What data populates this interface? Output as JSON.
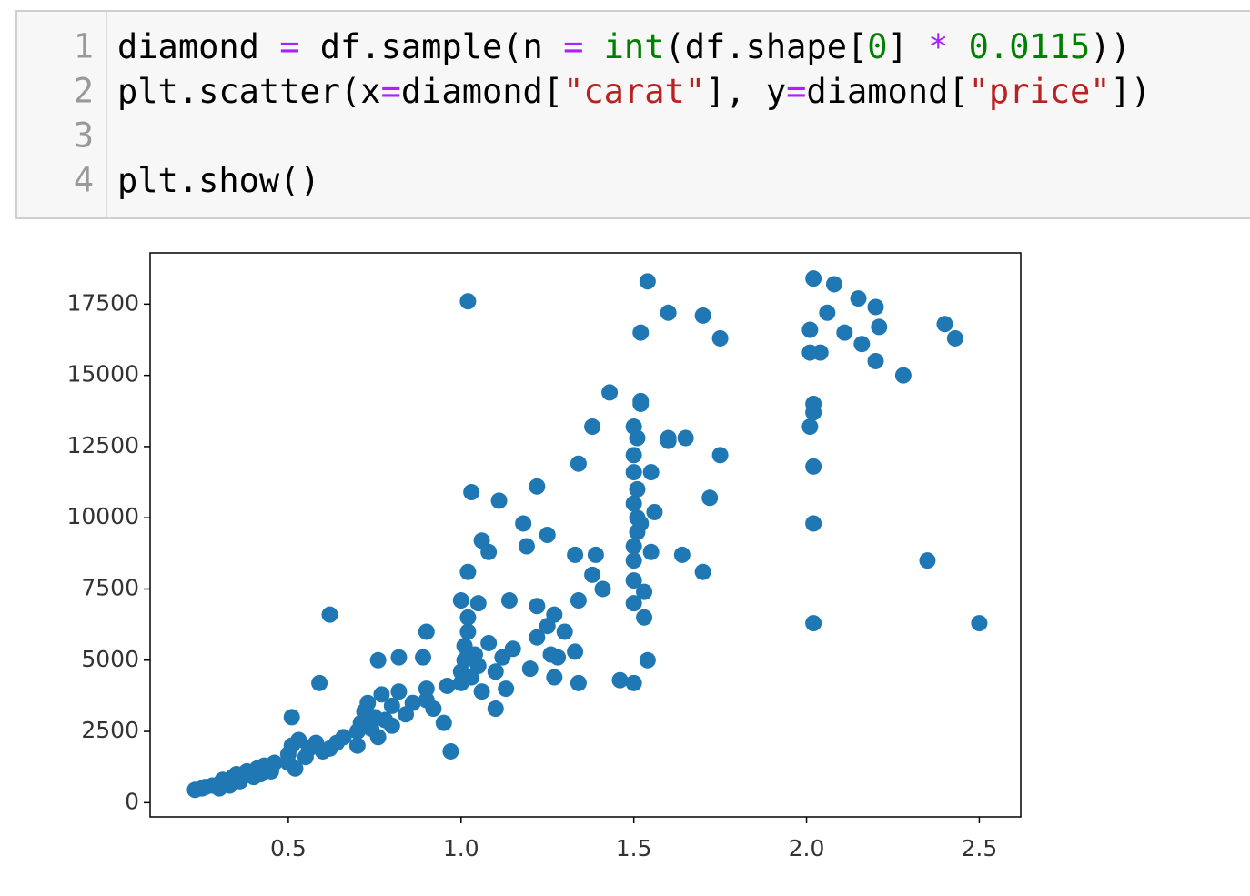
{
  "code": {
    "lines": [
      {
        "number": "1",
        "tokens": [
          {
            "text": "diamond ",
            "color": "#000000"
          },
          {
            "text": "=",
            "color": "#aa22ff"
          },
          {
            "text": " df.sample(n ",
            "color": "#000000"
          },
          {
            "text": "=",
            "color": "#aa22ff"
          },
          {
            "text": " ",
            "color": "#000000"
          },
          {
            "text": "int",
            "color": "#008000"
          },
          {
            "text": "(df.shape[",
            "color": "#000000"
          },
          {
            "text": "0",
            "color": "#008000"
          },
          {
            "text": "] ",
            "color": "#000000"
          },
          {
            "text": "*",
            "color": "#aa22ff"
          },
          {
            "text": " ",
            "color": "#000000"
          },
          {
            "text": "0.0115",
            "color": "#008000"
          },
          {
            "text": "))",
            "color": "#000000"
          }
        ]
      },
      {
        "number": "2",
        "tokens": [
          {
            "text": "plt.scatter(x",
            "color": "#000000"
          },
          {
            "text": "=",
            "color": "#aa22ff"
          },
          {
            "text": "diamond[",
            "color": "#000000"
          },
          {
            "text": "\"carat\"",
            "color": "#ba2121"
          },
          {
            "text": "], y",
            "color": "#000000"
          },
          {
            "text": "=",
            "color": "#aa22ff"
          },
          {
            "text": "diamond[",
            "color": "#000000"
          },
          {
            "text": "\"price\"",
            "color": "#ba2121"
          },
          {
            "text": "])",
            "color": "#000000"
          }
        ]
      },
      {
        "number": "3",
        "tokens": []
      },
      {
        "number": "4",
        "tokens": [
          {
            "text": "plt.show()",
            "color": "#000000"
          }
        ]
      }
    ]
  },
  "chart_data": {
    "type": "scatter",
    "color": "#1f77b4",
    "xlim": [
      0.1,
      2.62
    ],
    "ylim": [
      -500,
      19300
    ],
    "xticks": [
      0.5,
      {
        "value": 1,
        "label": "1.0"
      },
      1.5,
      {
        "value": 2,
        "label": "2.0"
      },
      2.5
    ],
    "yticks": [
      0,
      2500,
      5000,
      7500,
      10000,
      12500,
      15000,
      17500
    ],
    "x": [
      1.02,
      1.54,
      1.6,
      1.7,
      1.75,
      1.52,
      2.02,
      2.08,
      2.06,
      2.15,
      2.2,
      2.21,
      2.11,
      2.16,
      2.2,
      2.28,
      2.4,
      2.43,
      2.01,
      2.01,
      2.04,
      2.02,
      2.02,
      2.01,
      2.02,
      2.02,
      2.35,
      2.02,
      2.5,
      1.7,
      1.64,
      1.72,
      1.75,
      1.6,
      1.55,
      1.52,
      1.43,
      1.38,
      1.34,
      1.22,
      1.11,
      1.03,
      1.18,
      1.25,
      1.19,
      1.33,
      1.39,
      1.38,
      1.41,
      1.34,
      1.27,
      1.22,
      1.14,
      1.06,
      1.08,
      1.02,
      1.0,
      0.9,
      0.82,
      0.89,
      0.76,
      0.62,
      0.59,
      0.51,
      0.97,
      1.1,
      1.54,
      1.53,
      1.5,
      1.46,
      1.34,
      1.27,
      1.33,
      1.26,
      0.23,
      0.25,
      0.26,
      0.28,
      0.3,
      0.3,
      0.31,
      0.32,
      0.33,
      0.34,
      0.35,
      0.36,
      0.38,
      0.4,
      0.41,
      0.42,
      0.43,
      0.45,
      0.46,
      0.5,
      0.5,
      0.51,
      0.52,
      0.53,
      0.55,
      0.56,
      0.58,
      0.6,
      0.62,
      0.64,
      0.66,
      0.7,
      0.7,
      0.71,
      0.72,
      0.73,
      0.74,
      0.75,
      0.76,
      0.77,
      0.78,
      0.8,
      0.8,
      0.82,
      0.84,
      0.86,
      0.9,
      0.9,
      0.92,
      0.95,
      0.96,
      1.0,
      1.0,
      1.01,
      1.01,
      1.02,
      1.02,
      1.03,
      1.04,
      1.05,
      1.05,
      1.06,
      1.08,
      1.1,
      1.12,
      1.13,
      1.15,
      1.2,
      1.22,
      1.25,
      1.28,
      1.3,
      1.5,
      1.5,
      1.5,
      1.5,
      1.51,
      1.51,
      1.5,
      1.51,
      1.5,
      1.5,
      1.51,
      1.5,
      1.52,
      1.53,
      1.55,
      1.56,
      1.52,
      1.6,
      1.65
    ],
    "values": [
      17600,
      18300,
      17200,
      17100,
      16300,
      16500,
      18400,
      18200,
      17200,
      17700,
      17400,
      16700,
      16500,
      16100,
      15500,
      15000,
      16800,
      16300,
      16600,
      15800,
      15800,
      14000,
      13700,
      13200,
      11800,
      9800,
      8500,
      6300,
      6300,
      8100,
      8700,
      10700,
      12200,
      12800,
      11600,
      14100,
      14400,
      13200,
      11900,
      11100,
      10600,
      10900,
      9800,
      9400,
      9000,
      8700,
      8700,
      8000,
      7500,
      7100,
      6600,
      6900,
      7100,
      9200,
      8800,
      8100,
      7100,
      6000,
      5100,
      5100,
      5000,
      6600,
      4200,
      3000,
      1800,
      3300,
      5000,
      6500,
      4200,
      4300,
      4200,
      4400,
      5300,
      5200,
      450,
      500,
      550,
      600,
      650,
      500,
      800,
      700,
      600,
      900,
      1000,
      750,
      1100,
      900,
      1200,
      1000,
      1300,
      1100,
      1400,
      1400,
      1700,
      2000,
      1200,
      2200,
      1600,
      1900,
      2100,
      1800,
      1900,
      2100,
      2300,
      2500,
      2000,
      2800,
      3200,
      3500,
      2600,
      3000,
      2300,
      3800,
      2900,
      3400,
      2700,
      3900,
      3100,
      3500,
      3600,
      4000,
      3300,
      2800,
      4100,
      4200,
      4600,
      5000,
      5500,
      6000,
      6500,
      4400,
      5200,
      4800,
      7000,
      3900,
      5600,
      4600,
      5100,
      4000,
      5400,
      4700,
      5800,
      6200,
      5100,
      6000,
      7000,
      7800,
      8500,
      9000,
      9500,
      10000,
      10500,
      11000,
      11600,
      12200,
      12800,
      13200,
      14000,
      7400,
      8800,
      10200,
      9800,
      12700,
      12800
    ]
  }
}
